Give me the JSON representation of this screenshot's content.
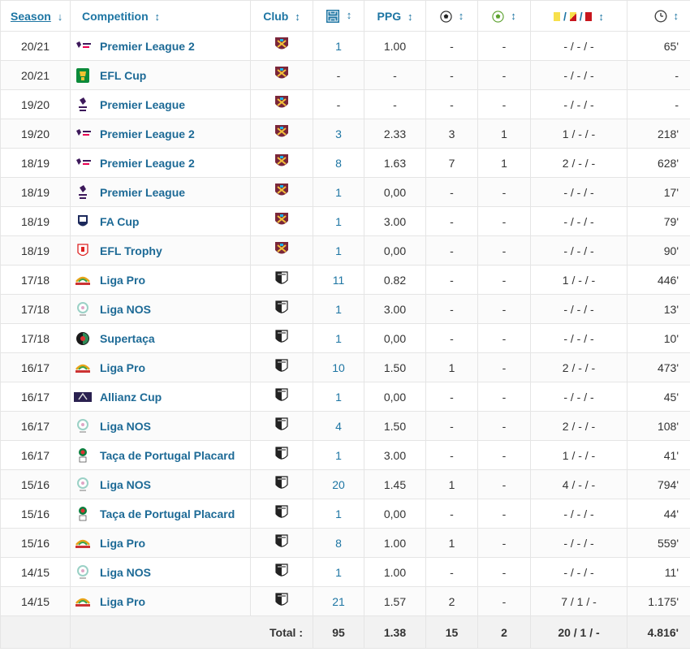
{
  "header": {
    "season": "Season",
    "competition": "Competition",
    "club": "Club",
    "ppg": "PPG",
    "sort_arrow": "↕",
    "sort_down": "↓",
    "cards_sep": "/"
  },
  "rows": [
    {
      "season": "20/21",
      "competition": "Premier League 2",
      "logo": "pl2",
      "club": "westham",
      "apps": "1",
      "ppg": "1.00",
      "goals": "-",
      "assists": "-",
      "cards": "- / - / -",
      "minutes": "65'"
    },
    {
      "season": "20/21",
      "competition": "EFL Cup",
      "logo": "eflcup",
      "club": "westham",
      "apps": "-",
      "ppg": "-",
      "goals": "-",
      "assists": "-",
      "cards": "- / - / -",
      "minutes": "-"
    },
    {
      "season": "19/20",
      "competition": "Premier League",
      "logo": "pl",
      "club": "westham",
      "apps": "-",
      "ppg": "-",
      "goals": "-",
      "assists": "-",
      "cards": "- / - / -",
      "minutes": "-"
    },
    {
      "season": "19/20",
      "competition": "Premier League 2",
      "logo": "pl2",
      "club": "westham",
      "apps": "3",
      "ppg": "2.33",
      "goals": "3",
      "assists": "1",
      "cards": "1 / - / -",
      "minutes": "218'"
    },
    {
      "season": "18/19",
      "competition": "Premier League 2",
      "logo": "pl2",
      "club": "westham",
      "apps": "8",
      "ppg": "1.63",
      "goals": "7",
      "assists": "1",
      "cards": "2 / - / -",
      "minutes": "628'"
    },
    {
      "season": "18/19",
      "competition": "Premier League",
      "logo": "pl",
      "club": "westham",
      "apps": "1",
      "ppg": "0,00",
      "goals": "-",
      "assists": "-",
      "cards": "- / - / -",
      "minutes": "17'"
    },
    {
      "season": "18/19",
      "competition": "FA Cup",
      "logo": "facup",
      "club": "westham",
      "apps": "1",
      "ppg": "3.00",
      "goals": "-",
      "assists": "-",
      "cards": "- / - / -",
      "minutes": "79'"
    },
    {
      "season": "18/19",
      "competition": "EFL Trophy",
      "logo": "efltrophy",
      "club": "westham",
      "apps": "1",
      "ppg": "0,00",
      "goals": "-",
      "assists": "-",
      "cards": "- / - / -",
      "minutes": "90'"
    },
    {
      "season": "17/18",
      "competition": "Liga Pro",
      "logo": "ligapro",
      "club": "guimaraes",
      "apps": "11",
      "ppg": "0.82",
      "goals": "-",
      "assists": "-",
      "cards": "1 / - / -",
      "minutes": "446'"
    },
    {
      "season": "17/18",
      "competition": "Liga NOS",
      "logo": "liganos",
      "club": "guimaraes",
      "apps": "1",
      "ppg": "3.00",
      "goals": "-",
      "assists": "-",
      "cards": "- / - / -",
      "minutes": "13'"
    },
    {
      "season": "17/18",
      "competition": "Supertaça",
      "logo": "supertaca",
      "club": "guimaraes",
      "apps": "1",
      "ppg": "0,00",
      "goals": "-",
      "assists": "-",
      "cards": "- / - / -",
      "minutes": "10'"
    },
    {
      "season": "16/17",
      "competition": "Liga Pro",
      "logo": "ligapro",
      "club": "guimaraes",
      "apps": "10",
      "ppg": "1.50",
      "goals": "1",
      "assists": "-",
      "cards": "2 / - / -",
      "minutes": "473'"
    },
    {
      "season": "16/17",
      "competition": "Allianz Cup",
      "logo": "allianz",
      "club": "guimaraes",
      "apps": "1",
      "ppg": "0,00",
      "goals": "-",
      "assists": "-",
      "cards": "- / - / -",
      "minutes": "45'"
    },
    {
      "season": "16/17",
      "competition": "Liga NOS",
      "logo": "liganos",
      "club": "guimaraes",
      "apps": "4",
      "ppg": "1.50",
      "goals": "-",
      "assists": "-",
      "cards": "2 / - / -",
      "minutes": "108'"
    },
    {
      "season": "16/17",
      "competition": "Taça de Portugal Placard",
      "logo": "taca",
      "club": "guimaraes",
      "apps": "1",
      "ppg": "3.00",
      "goals": "-",
      "assists": "-",
      "cards": "1 / - / -",
      "minutes": "41'"
    },
    {
      "season": "15/16",
      "competition": "Liga NOS",
      "logo": "liganos",
      "club": "guimaraes",
      "apps": "20",
      "ppg": "1.45",
      "goals": "1",
      "assists": "-",
      "cards": "4 / - / -",
      "minutes": "794'"
    },
    {
      "season": "15/16",
      "competition": "Taça de Portugal Placard",
      "logo": "taca",
      "club": "guimaraes",
      "apps": "1",
      "ppg": "0,00",
      "goals": "-",
      "assists": "-",
      "cards": "- / - / -",
      "minutes": "44'"
    },
    {
      "season": "15/16",
      "competition": "Liga Pro",
      "logo": "ligapro",
      "club": "guimaraes",
      "apps": "8",
      "ppg": "1.00",
      "goals": "1",
      "assists": "-",
      "cards": "- / - / -",
      "minutes": "559'"
    },
    {
      "season": "14/15",
      "competition": "Liga NOS",
      "logo": "liganos",
      "club": "guimaraes",
      "apps": "1",
      "ppg": "1.00",
      "goals": "-",
      "assists": "-",
      "cards": "- / - / -",
      "minutes": "11'"
    },
    {
      "season": "14/15",
      "competition": "Liga Pro",
      "logo": "ligapro",
      "club": "guimaraes",
      "apps": "21",
      "ppg": "1.57",
      "goals": "2",
      "assists": "-",
      "cards": "7 / 1 / -",
      "minutes": "1.175'"
    }
  ],
  "totals": {
    "label": "Total :",
    "apps": "95",
    "ppg": "1.38",
    "goals": "15",
    "assists": "2",
    "cards": "20 / 1 / -",
    "minutes": "4.816'"
  },
  "colors": {
    "link": "#1d75a3",
    "yellow": "#f7e04b",
    "red": "#c8161d",
    "westham": "#7a263a"
  }
}
